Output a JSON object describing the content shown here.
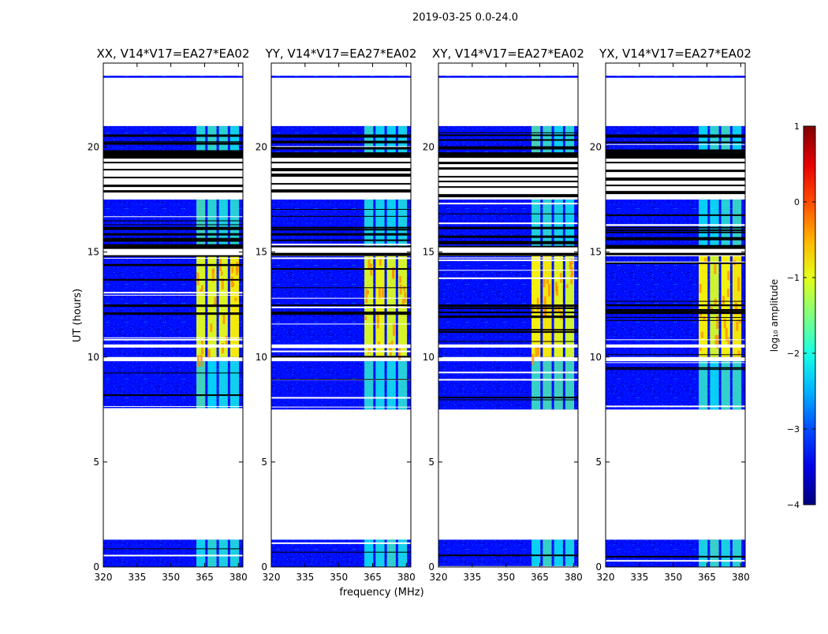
{
  "suptitle": "2019-03-25 0.0-24.0",
  "chart_data": {
    "type": "heatmap",
    "xlabel": "frequency (MHz)",
    "ylabel": "UT (hours)",
    "xlim": [
      320,
      382
    ],
    "ylim": [
      0,
      24
    ],
    "xticks": [
      320,
      335,
      350,
      365,
      380
    ],
    "yticks": [
      0,
      5,
      10,
      15,
      20
    ],
    "panels": [
      {
        "title": "XX, V14*V17=EA27*EA02"
      },
      {
        "title": "YY, V14*V17=EA27*EA02"
      },
      {
        "title": "XY, V14*V17=EA27*EA02"
      },
      {
        "title": "YX, V14*V17=EA27*EA02"
      }
    ],
    "colorbar": {
      "label": "log₁₀ amplitude",
      "colormap": "jet",
      "vmin": -4,
      "vmax": 1,
      "ticks": [
        1,
        0,
        -1,
        -2,
        -3,
        -4
      ]
    },
    "data_blocks_hours": [
      [
        0,
        1.3
      ],
      [
        7.5,
        9.8
      ],
      [
        10.0,
        14.8
      ],
      [
        15.3,
        17.5
      ],
      [
        19.5,
        21.0
      ],
      [
        23.3,
        23.4
      ]
    ],
    "bright_band_MHz": [
      361,
      381
    ]
  }
}
